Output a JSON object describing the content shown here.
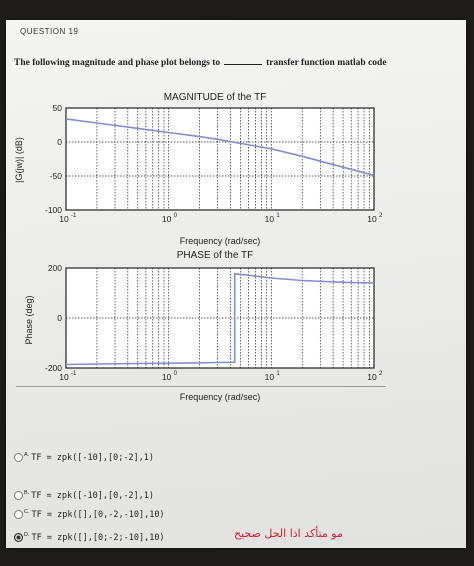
{
  "question": {
    "number": "QUESTION 19",
    "text_before": "The following magnitude and phase plot belongs to",
    "text_after": "transfer function matlab code"
  },
  "magnitude_plot": {
    "title": "MAGNITUDE of the TF",
    "ylabel": "|G(jw)| (dB)",
    "xlabel": "Frequency (rad/sec)",
    "yticks": [
      "50",
      "0",
      "-50",
      "-100"
    ],
    "xticks": [
      "10",
      "10",
      "10",
      "10"
    ],
    "xtick_exponents": [
      "-1",
      "0",
      "1",
      "2"
    ]
  },
  "phase_plot": {
    "title": "PHASE of the TF",
    "ylabel": "Phase (deg)",
    "xlabel": "Frequency (rad/sec)",
    "yticks": [
      "200",
      "0",
      "-200"
    ],
    "xticks": [
      "10",
      "10",
      "10",
      "10"
    ],
    "xtick_exponents": [
      "-1",
      "0",
      "1",
      "2"
    ]
  },
  "options": [
    {
      "letter": "A.",
      "code": "TF = zpk([-10],[0;-2],1)",
      "selected": false
    },
    {
      "letter": "B.",
      "code": "TF = zpk([-10],[0,-2],1)",
      "selected": false
    },
    {
      "letter": "C.",
      "code": "TF = zpk([],[0,-2,-10],10)",
      "selected": false
    },
    {
      "letter": "D.",
      "code": "TF = zpk([],[0;-2;-10],10)",
      "selected": true
    }
  ],
  "annotation": "مو متأكد اذا الحل صحيح",
  "colors": {
    "curve": "#7f8fd0",
    "grid": "#222222",
    "annotation": "#d0202a"
  },
  "chart_data": [
    {
      "type": "line",
      "title": "MAGNITUDE of the TF",
      "xlabel": "Frequency (rad/sec)",
      "ylabel": "|G(jw)| (dB)",
      "xscale": "log",
      "xlim": [
        0.1,
        100
      ],
      "ylim": [
        -100,
        50
      ],
      "grid": true,
      "x": [
        0.1,
        0.2,
        0.5,
        1,
        2,
        3,
        5,
        10,
        20,
        50,
        100
      ],
      "y": [
        34,
        28,
        20,
        14,
        8,
        4,
        -2,
        -10,
        -21,
        -37,
        -49
      ]
    },
    {
      "type": "line",
      "title": "PHASE of the TF",
      "xlabel": "Frequency (rad/sec)",
      "ylabel": "Phase (deg)",
      "xscale": "log",
      "xlim": [
        0.1,
        100
      ],
      "ylim": [
        -200,
        200
      ],
      "grid": true,
      "x": [
        0.1,
        0.2,
        0.5,
        1,
        2,
        3,
        4.4,
        4.4,
        5,
        10,
        20,
        50,
        100
      ],
      "y": [
        -186,
        -184,
        -182,
        -181,
        -179,
        -178,
        -177,
        177,
        175,
        160,
        150,
        143,
        140
      ]
    }
  ]
}
